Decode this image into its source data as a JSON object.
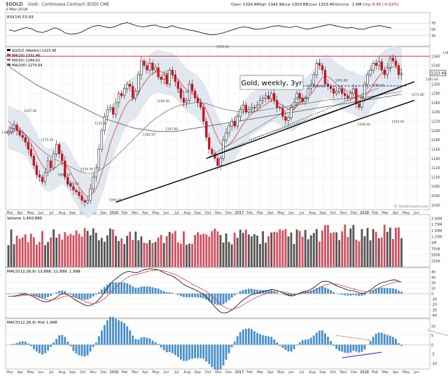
{
  "header": {
    "symbol": "$GOLD",
    "description": "Gold - Continuous Contract (EOD) CME",
    "date": "2-Mar-2018",
    "open_label": "Open",
    "open_value": "1320.40",
    "high_label": "High",
    "high_value": "1342.90",
    "low_label": "Low",
    "low_value": "1303.80",
    "close_label": "Close",
    "close_value": "1323.40",
    "volume_label": "Volume",
    "volume_value": "1.6M",
    "chg_label": "Chg",
    "chg_value": "-8.90 (-0.52%)",
    "chg_color": "#cc0000"
  },
  "watermark": "© StockCharts.com",
  "chart_data": [
    {
      "type": "line",
      "panel": "rsi",
      "legend": "RSI(14) 53.93",
      "ylim": [
        0,
        100
      ],
      "y_ticks": [
        "70",
        "50",
        "30"
      ],
      "series": [
        {
          "name": "RSI(14)",
          "values": [
            48,
            44,
            50,
            56,
            52,
            42,
            40,
            46,
            55,
            50,
            38,
            34,
            36,
            42,
            52,
            60,
            63,
            58,
            55,
            60,
            68,
            72,
            66,
            60,
            58,
            62,
            64,
            58,
            55,
            62,
            56,
            52,
            48,
            45,
            40,
            36,
            32,
            34,
            38,
            44,
            50,
            56,
            58,
            54,
            50,
            52,
            56,
            60,
            62,
            58,
            56,
            60,
            55,
            50,
            54,
            58,
            62,
            66,
            62,
            58,
            54,
            56,
            52,
            50,
            56,
            60,
            62,
            58,
            54
          ]
        }
      ],
      "color": "#000000"
    },
    {
      "type": "candlestick",
      "panel": "price",
      "title": "Gold, weekly, 3yr",
      "legend": [
        "$GOLD (Weekly) 1323.40",
        "MA(10) 1331.46",
        "MA(50) 1284.62",
        "MA(200) 1274.64"
      ],
      "x_ticks": [
        "Mar",
        "Apr",
        "May",
        "Jun",
        "Jul",
        "Aug",
        "Sep",
        "Oct",
        "Nov",
        "Dec",
        "2016",
        "Feb",
        "Mar",
        "Apr",
        "May",
        "Jun",
        "Jul",
        "Aug",
        "Sep",
        "Oct",
        "Nov",
        "Dec",
        "2017",
        "Feb",
        "Mar",
        "Apr",
        "May",
        "Jun",
        "Jul",
        "Aug",
        "Sep",
        "Oct",
        "Nov",
        "Dec",
        "2018",
        "Feb",
        "Mar",
        "Apr",
        "May",
        "Jun"
      ],
      "y_ticks": [
        "1360",
        "1340",
        "1320",
        "1300",
        "1280",
        "1260",
        "1240",
        "1220",
        "1200",
        "1180",
        "1160",
        "1140",
        "1120",
        "1100",
        "1080",
        "1060",
        "1040"
      ],
      "ylim": [
        1030,
        1380
      ],
      "last_price_label": "1323.40",
      "horizontal_line": 1360,
      "closes": [
        1198,
        1205,
        1212,
        1200,
        1190,
        1185,
        1175,
        1160,
        1145,
        1125,
        1105,
        1100,
        1090,
        1110,
        1135,
        1120,
        1150,
        1170,
        1150,
        1135,
        1100,
        1085,
        1080,
        1072,
        1068,
        1060,
        1050,
        1046,
        1050,
        1075,
        1100,
        1120,
        1160,
        1200,
        1230,
        1245,
        1250,
        1235,
        1260,
        1280,
        1275,
        1290,
        1300,
        1295,
        1270,
        1285,
        1320,
        1350,
        1340,
        1330,
        1345,
        1330,
        1335,
        1315,
        1310,
        1320,
        1300,
        1330,
        1320,
        1305,
        1290,
        1270,
        1260,
        1265,
        1300,
        1285,
        1270,
        1260,
        1250,
        1220,
        1185,
        1160,
        1150,
        1140,
        1125,
        1140,
        1180,
        1195,
        1210,
        1220,
        1210,
        1230,
        1245,
        1255,
        1240,
        1245,
        1250,
        1250,
        1255,
        1265,
        1270,
        1275,
        1268,
        1280,
        1265,
        1250,
        1248,
        1230,
        1222,
        1228,
        1250,
        1260,
        1280,
        1270,
        1262,
        1270,
        1290,
        1300,
        1320,
        1345,
        1340,
        1330,
        1300,
        1295,
        1290,
        1280,
        1285,
        1290,
        1280,
        1275,
        1270,
        1280,
        1290,
        1258,
        1250,
        1270,
        1300,
        1320,
        1330,
        1345,
        1340,
        1348,
        1330,
        1320,
        1335,
        1356,
        1350,
        1340,
        1320,
        1323
      ],
      "ma10": [
        1208,
        1205,
        1202,
        1200,
        1198,
        1195,
        1190,
        1182,
        1172,
        1160,
        1148,
        1136,
        1125,
        1118,
        1115,
        1115,
        1118,
        1122,
        1128,
        1130,
        1128,
        1120,
        1110,
        1098,
        1088,
        1078,
        1070,
        1062,
        1058,
        1060,
        1066,
        1075,
        1090,
        1108,
        1128,
        1150,
        1172,
        1190,
        1205,
        1220,
        1235,
        1248,
        1258,
        1265,
        1268,
        1272,
        1280,
        1292,
        1302,
        1310,
        1318,
        1322,
        1326,
        1328,
        1326,
        1324,
        1322,
        1322,
        1320,
        1316,
        1310,
        1302,
        1294,
        1288,
        1284,
        1280,
        1276,
        1270,
        1264,
        1256,
        1244,
        1230,
        1214,
        1198,
        1184,
        1172,
        1166,
        1166,
        1170,
        1176,
        1184,
        1194,
        1204,
        1214,
        1222,
        1230,
        1236,
        1240,
        1244,
        1248,
        1252,
        1256,
        1260,
        1264,
        1264,
        1262,
        1258,
        1254,
        1250,
        1246,
        1244,
        1246,
        1252,
        1258,
        1264,
        1268,
        1272,
        1278,
        1286,
        1296,
        1306,
        1314,
        1316,
        1316,
        1312,
        1306,
        1300,
        1296,
        1292,
        1288,
        1284,
        1282,
        1282,
        1278,
        1274,
        1272,
        1274,
        1280,
        1288,
        1298,
        1308,
        1316,
        1322,
        1326,
        1330,
        1334,
        1337,
        1338,
        1334,
        1331
      ],
      "ma50": [
        1220,
        1216,
        1212,
        1208,
        1203,
        1198,
        1192,
        1186,
        1180,
        1174,
        1168,
        1162,
        1157,
        1152,
        1148,
        1144,
        1140,
        1137,
        1134,
        1131,
        1128,
        1125,
        1122,
        1119,
        1116,
        1113,
        1111,
        1109,
        1108,
        1108,
        1109,
        1111,
        1114,
        1118,
        1122,
        1127,
        1132,
        1138,
        1144,
        1150,
        1156,
        1162,
        1168,
        1174,
        1180,
        1186,
        1192,
        1198,
        1204,
        1210,
        1216,
        1221,
        1226,
        1230,
        1234,
        1238,
        1242,
        1245,
        1248,
        1251,
        1253,
        1255,
        1256,
        1257,
        1258,
        1259,
        1260,
        1260,
        1260,
        1259,
        1258,
        1256,
        1254,
        1252,
        1250,
        1248,
        1246,
        1245,
        1244,
        1243,
        1242,
        1241,
        1240,
        1240,
        1240,
        1240,
        1240,
        1241,
        1242,
        1243,
        1244,
        1245,
        1246,
        1247,
        1248,
        1249,
        1250,
        1250,
        1251,
        1252,
        1253,
        1254,
        1255,
        1256,
        1257,
        1258,
        1259,
        1260,
        1261,
        1262,
        1263,
        1264,
        1265,
        1266,
        1266,
        1267,
        1267,
        1268,
        1268,
        1269,
        1269,
        1270,
        1270,
        1270,
        1271,
        1271,
        1272,
        1272,
        1273,
        1274,
        1275,
        1276,
        1277,
        1278,
        1279,
        1280,
        1281,
        1282,
        1283,
        1284
      ],
      "ma200": [
        1340,
        1335,
        1330,
        1326,
        1322,
        1318,
        1314,
        1310,
        1306,
        1302,
        1298,
        1295,
        1292,
        1289,
        1286,
        1283,
        1280,
        1277,
        1274,
        1271,
        1268,
        1265,
        1262,
        1259,
        1256,
        1253,
        1250,
        1247,
        1244,
        1241,
        1238,
        1235,
        1232,
        1229,
        1226,
        1224,
        1222,
        1220,
        1218,
        1216,
        1214,
        1212,
        1210,
        1208,
        1206,
        1205,
        1204,
        1203,
        1202,
        1201,
        1200,
        1199,
        1198,
        1198,
        1198,
        1198,
        1198,
        1198,
        1198,
        1198,
        1199,
        1200,
        1201,
        1202,
        1203,
        1204,
        1205,
        1206,
        1207,
        1208,
        1209,
        1210,
        1211,
        1212,
        1213,
        1214,
        1215,
        1216,
        1217,
        1218,
        1219,
        1220,
        1221,
        1222,
        1223,
        1224,
        1225,
        1226,
        1227,
        1228,
        1229,
        1230,
        1231,
        1232,
        1233,
        1234,
        1235,
        1236,
        1237,
        1238,
        1239,
        1240,
        1241,
        1242,
        1243,
        1244,
        1245,
        1246,
        1247,
        1248,
        1249,
        1250,
        1251,
        1252,
        1253,
        1254,
        1255,
        1256,
        1257,
        1258,
        1259,
        1260,
        1261,
        1262,
        1263,
        1264,
        1265,
        1266,
        1267,
        1268,
        1269,
        1270,
        1271,
        1272,
        1273,
        1274,
        1275,
        1276,
        1277,
        1277
      ],
      "point_labels": [
        {
          "text": "1191.40",
          "i": 0,
          "y": 1191
        },
        {
          "text": "1237.40",
          "i": 8,
          "y": 1237
        },
        {
          "text": "1175.20",
          "i": 14,
          "y": 1175
        },
        {
          "text": "1086.70",
          "i": 20,
          "y": 1100
        },
        {
          "text": "1081.60",
          "i": 23,
          "y": 1080
        },
        {
          "text": "1116.30",
          "i": 28,
          "y": 1112
        },
        {
          "text": "1212.50",
          "i": 33,
          "y": 1210
        },
        {
          "text": "1046.20",
          "i": 38,
          "y": 1046
        },
        {
          "text": "1182.50",
          "i": 50,
          "y": 1186
        },
        {
          "text": "1258.30",
          "i": 55,
          "y": 1258
        },
        {
          "text": "1197.80",
          "i": 58,
          "y": 1198
        },
        {
          "text": "1280.50",
          "i": 62,
          "y": 1278
        },
        {
          "text": "1375.50",
          "i": 76,
          "y": 1375
        },
        {
          "text": "1311.30",
          "i": 86,
          "y": 1311
        },
        {
          "text": "1264.00",
          "i": 104,
          "y": 1264
        },
        {
          "text": "1290.50",
          "i": 110,
          "y": 1290
        },
        {
          "text": "1303.40",
          "i": 118,
          "y": 1303
        },
        {
          "text": "1208.40",
          "i": 126,
          "y": 1208
        },
        {
          "text": "1295.30",
          "i": 131,
          "y": 1292
        },
        {
          "text": "1214.50",
          "i": 138,
          "y": 1214
        },
        {
          "text": "1271.80",
          "i": 145,
          "y": 1272
        },
        {
          "text": "1305.00",
          "i": 150,
          "y": 1305
        },
        {
          "text": "1362.40",
          "i": 156,
          "y": 1362
        },
        {
          "text": "1269.50",
          "i": 160,
          "y": 1269
        },
        {
          "text": "1238.30",
          "i": 165,
          "y": 1238
        },
        {
          "text": "1366.20",
          "i": 172,
          "y": 1366
        }
      ]
    },
    {
      "type": "bar",
      "panel": "volume",
      "legend": "Volume 1,450,885",
      "y_ticks": [
        "2.00M",
        "1.75M",
        "1.50M",
        "1.25M",
        "1M",
        "750K",
        "500K",
        "250K"
      ],
      "ylim": [
        0,
        2100000
      ]
    },
    {
      "type": "line",
      "panel": "macd",
      "legend": "MACD(12,26,9) 13.888, 11.889, 1.998",
      "y_ticks": [
        "40",
        "30",
        "20",
        "10",
        "0",
        "-10",
        "-20",
        "-30",
        "-40"
      ],
      "ylim": [
        -45,
        48
      ]
    },
    {
      "type": "bar",
      "panel": "macd_hist",
      "legend": "MACD(12,26,9) Hist 1.998",
      "y_ticks": [
        "10",
        "5",
        "0",
        "-5",
        "-10"
      ],
      "ylim": [
        -13,
        14
      ]
    }
  ]
}
